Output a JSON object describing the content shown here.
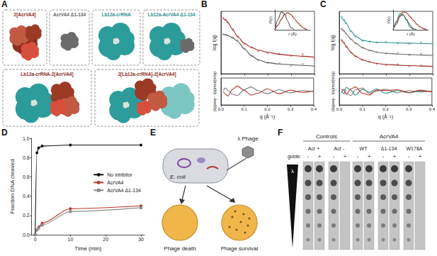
{
  "panel_a": {
    "panel": "A",
    "structures": [
      "2[AcrVA4]",
      "AcrVA4 Δ1-134",
      "Lb12a-crRNA",
      "Lb12a-AcrVA4 Δ1-134",
      "Lb12a-crRNA-2[AcrVA4]",
      "2[Lb12a-crRNA]-2[AcrVA4]"
    ]
  },
  "chart_data": [
    {
      "panel": "B",
      "type": "line",
      "ylabel": "log I(q)",
      "xlim": [
        0,
        0.4
      ],
      "xticks": [
        0,
        0.1,
        0.2,
        0.3,
        0.4
      ],
      "ylim": [
        -4,
        0.5
      ],
      "tick_labels": false,
      "x": [
        0.01,
        0.02,
        0.03,
        0.05,
        0.07,
        0.1,
        0.13,
        0.16,
        0.2,
        0.25,
        0.3,
        0.35,
        0.4
      ],
      "series": [
        {
          "type": "scatter",
          "marker": "circle",
          "color": "#d58a7f",
          "values": [
            0.02,
            -0.1,
            -0.3,
            -0.8,
            -1.3,
            -1.85,
            -2.1,
            -2.35,
            -2.5,
            -2.55,
            -2.7,
            -2.6,
            -2.9
          ]
        },
        {
          "type": "line",
          "line_style": "solid",
          "color": "#9b2a1c",
          "values": [
            0,
            -0.12,
            -0.32,
            -0.8,
            -1.3,
            -1.8,
            -2.1,
            -2.3,
            -2.45,
            -2.6,
            -2.68,
            -2.74,
            -2.8
          ]
        },
        {
          "type": "scatter",
          "marker": "circle",
          "color": "#ababab",
          "values": [
            -1.15,
            -1.2,
            -1.25,
            -1.4,
            -1.6,
            -2.2,
            -2.7,
            -3.0,
            -3.2,
            -3.25,
            -3.4,
            -3.3,
            -3.5
          ]
        },
        {
          "type": "line",
          "line_style": "solid",
          "color": "#555555",
          "values": [
            -1.15,
            -1.18,
            -1.25,
            -1.4,
            -1.65,
            -2.2,
            -2.7,
            -3.0,
            -3.2,
            -3.3,
            -3.35,
            -3.4,
            -3.45
          ]
        }
      ]
    },
    {
      "type": "line",
      "xlabel": "q (Å⁻¹)",
      "ylabel": "(I(q)exp - I(q)mod)/σ(q)",
      "xlim": [
        0,
        0.4
      ],
      "xticks": [
        {
          "value": 0,
          "label": "0.0"
        },
        0.1,
        0.2,
        0.3,
        0.4
      ],
      "ylim": [
        -3,
        3
      ],
      "tick_labels": "x",
      "x": [
        0.01,
        0.02,
        0.03,
        0.05,
        0.07,
        0.1,
        0.13,
        0.16,
        0.2,
        0.25,
        0.3,
        0.35,
        0.4
      ],
      "series": [
        {
          "line_style": "solid",
          "color": "#c0392b",
          "values": [
            0,
            -0.6,
            -1,
            0.5,
            1.2,
            0.3,
            -0.8,
            -0.4,
            0.6,
            -0.5,
            0.3,
            -0.2,
            0.1
          ]
        },
        {
          "line_style": "solid",
          "color": "#777777",
          "values": [
            0.3,
            0.8,
            0.2,
            -0.6,
            -0.9,
            0.4,
            1.0,
            0.2,
            -0.5,
            0.4,
            -0.3,
            0.2,
            0
          ]
        }
      ]
    },
    {
      "type": "line",
      "xlabel": "r (Å)",
      "ylabel": "P(r)",
      "xlim": [
        0,
        110
      ],
      "ylim": [
        0,
        1.05
      ],
      "tick_labels": false,
      "series": [
        {
          "line_style": "solid",
          "color": "#9b2a1c",
          "x": [
            0,
            10,
            20,
            30,
            40,
            50,
            60,
            70,
            80,
            90,
            100
          ],
          "values": [
            0,
            0.25,
            0.55,
            0.8,
            0.9,
            0.8,
            0.6,
            0.4,
            0.22,
            0.08,
            0
          ]
        },
        {
          "line_style": "solid",
          "color": "#555555",
          "x": [
            0,
            10,
            20,
            30,
            40,
            50,
            60
          ],
          "values": [
            0,
            0.55,
            0.95,
            0.85,
            0.45,
            0.12,
            0
          ]
        }
      ]
    },
    {
      "panel": "C",
      "type": "line",
      "ylabel": "log I(q)",
      "xlim": [
        0,
        0.4
      ],
      "xticks": [
        0,
        0.1,
        0.2,
        0.3,
        0.4
      ],
      "ylim": [
        -4.5,
        0.5
      ],
      "tick_labels": false,
      "x": [
        0.01,
        0.02,
        0.03,
        0.05,
        0.07,
        0.1,
        0.13,
        0.16,
        0.2,
        0.25,
        0.3,
        0.35,
        0.4
      ],
      "series": [
        {
          "type": "scatter",
          "marker": "circle",
          "color": "#7fc2bf",
          "values": [
            0.05,
            -0.2,
            -0.45,
            -1.1,
            -1.5,
            -1.85,
            -1.9,
            -2.0,
            -1.95,
            -2.05,
            -2.1,
            -2.0,
            -2.2
          ]
        },
        {
          "type": "line",
          "line_style": "solid",
          "color": "#2a8c8a",
          "values": [
            0,
            -0.2,
            -0.48,
            -1.08,
            -1.5,
            -1.82,
            -1.93,
            -1.98,
            -2.0,
            -2.03,
            -2.05,
            -2.07,
            -2.1
          ]
        },
        {
          "type": "scatter",
          "marker": "circle",
          "color": "#b5b0a8",
          "values": [
            -0.9,
            -1.05,
            -1.3,
            -1.75,
            -2.05,
            -2.4,
            -2.65,
            -2.75,
            -2.9,
            -2.85,
            -3.0,
            -2.9,
            -3.1
          ]
        },
        {
          "type": "line",
          "line_style": "solid",
          "color": "#6e6a64",
          "values": [
            -0.9,
            -1.08,
            -1.3,
            -1.72,
            -2.05,
            -2.42,
            -2.62,
            -2.78,
            -2.86,
            -2.92,
            -2.96,
            -3.0,
            -3.02
          ]
        },
        {
          "type": "scatter",
          "marker": "circle",
          "color": "#d58a7f",
          "values": [
            -1.8,
            -2.0,
            -2.35,
            -2.8,
            -3.1,
            -3.4,
            -3.55,
            -3.7,
            -3.8,
            -3.75,
            -3.9,
            -3.85,
            -4.0
          ]
        },
        {
          "type": "line",
          "line_style": "solid",
          "color": "#9b2a1c",
          "values": [
            -1.8,
            -2.02,
            -2.32,
            -2.78,
            -3.1,
            -3.38,
            -3.56,
            -3.68,
            -3.76,
            -3.81,
            -3.85,
            -3.88,
            -3.9
          ]
        }
      ]
    },
    {
      "type": "line",
      "xlabel": "q (Å⁻¹)",
      "ylabel": "(I(q)exp - I(q)mod)/σ(q)",
      "xlim": [
        0,
        0.4
      ],
      "xticks": [
        {
          "value": 0,
          "label": "0.0"
        },
        0.1,
        0.2,
        0.3,
        0.4
      ],
      "ylim": [
        -3,
        3
      ],
      "tick_labels": "x",
      "x": [
        0.01,
        0.02,
        0.03,
        0.05,
        0.07,
        0.1,
        0.13,
        0.16,
        0.2,
        0.25,
        0.3,
        0.35,
        0.4
      ],
      "series": [
        {
          "line_style": "solid",
          "color": "#2a8c8a",
          "values": [
            0.2,
            -0.5,
            0.9,
            0.3,
            -0.8,
            0.5,
            -0.2,
            0.6,
            -0.4,
            0.2,
            -0.3,
            0.1,
            0
          ]
        },
        {
          "line_style": "solid",
          "color": "#8a857e",
          "values": [
            -0.3,
            0.6,
            -0.4,
            -0.9,
            0.4,
            0.8,
            -0.5,
            0.1,
            0.5,
            -0.3,
            0.2,
            -0.1,
            0.1
          ]
        },
        {
          "line_style": "solid",
          "color": "#c0392b",
          "values": [
            0.5,
            0.2,
            -0.7,
            0.6,
            1.0,
            -0.4,
            -0.8,
            0.3,
            0.2,
            0.4,
            -0.2,
            0.3,
            -0.1
          ]
        }
      ]
    },
    {
      "type": "line",
      "xlabel": "r (Å)",
      "ylabel": "P(r)",
      "xlim": [
        0,
        210
      ],
      "ylim": [
        0,
        1.05
      ],
      "tick_labels": false,
      "series": [
        {
          "line_style": "solid",
          "color": "#9b2a1c",
          "x": [
            0,
            20,
            40,
            60,
            80,
            100,
            120,
            140,
            160,
            180,
            200
          ],
          "values": [
            0,
            0.3,
            0.7,
            0.95,
            0.9,
            0.7,
            0.5,
            0.3,
            0.15,
            0.05,
            0
          ]
        },
        {
          "line_style": "solid",
          "color": "#2a8c8a",
          "x": [
            0,
            20,
            40,
            60,
            80,
            100,
            120
          ],
          "values": [
            0,
            0.45,
            0.85,
            0.8,
            0.5,
            0.15,
            0
          ]
        },
        {
          "line_style": "solid",
          "color": "#6e6a64",
          "x": [
            0,
            20,
            40,
            60,
            80,
            100,
            120,
            140
          ],
          "values": [
            0,
            0.4,
            0.75,
            0.78,
            0.55,
            0.25,
            0.06,
            0
          ]
        }
      ]
    },
    {
      "panel": "D",
      "type": "line",
      "xlabel": "Time (min)",
      "ylabel": "Fraction DNA cleaved",
      "xlim": [
        -1,
        31
      ],
      "xticks": [
        0,
        10,
        20,
        30
      ],
      "ylim": [
        0,
        1
      ],
      "yticks": [
        {
          "value": 0,
          "label": "0.0"
        },
        0.2,
        0.4,
        0.6,
        0.8,
        {
          "value": 1,
          "label": "1.0"
        }
      ],
      "legend": "right",
      "x": [
        0,
        0.5,
        1,
        2,
        10,
        30
      ],
      "series": [
        {
          "name": "No inhibitor",
          "color": "#111111",
          "marker": "circle",
          "line_style": "solid",
          "values": [
            0,
            0.85,
            0.9,
            0.92,
            0.93,
            0.93
          ]
        },
        {
          "name": "AcrVA4",
          "color": "#b8352a",
          "marker": "circle",
          "line_style": "solid",
          "values": [
            0,
            0.05,
            0.08,
            0.12,
            0.27,
            0.3
          ]
        },
        {
          "name": "AcrVA4 Δ1-134",
          "color": "#8c8c8c",
          "marker": "square",
          "line_style": "solid",
          "values": [
            0,
            0.05,
            0.07,
            0.1,
            0.24,
            0.28
          ]
        }
      ]
    }
  ],
  "panel_e": {
    "panel": "E",
    "host": "E. coli",
    "phage": "λ Phage",
    "outcomes": [
      "Phage death",
      "Phage survival"
    ]
  },
  "panel_f": {
    "panel": "F",
    "guide_label": "guide:",
    "phage": "λ",
    "groups": [
      {
        "title": "Controls",
        "columns": [
          {
            "label": "Acr +",
            "lanes": [
              {
                "guide": "-",
                "plaques": 6
              },
              {
                "guide": "+",
                "plaques": 6
              }
            ]
          },
          {
            "label": "Acr -",
            "lanes": [
              {
                "guide": "-",
                "plaques": 6
              },
              {
                "guide": "+",
                "plaques": 0
              }
            ]
          }
        ]
      },
      {
        "title": "AcrVA4",
        "columns": [
          {
            "label": "WT",
            "lanes": [
              {
                "guide": "-",
                "plaques": 6
              },
              {
                "guide": "+",
                "plaques": 6
              }
            ]
          },
          {
            "label": "Δ1-134",
            "lanes": [
              {
                "guide": "-",
                "plaques": 6
              },
              {
                "guide": "+",
                "plaques": 6
              }
            ]
          },
          {
            "label": "W178A",
            "lanes": [
              {
                "guide": "-",
                "plaques": 6
              },
              {
                "guide": "+",
                "plaques": 0
              }
            ]
          }
        ]
      }
    ]
  }
}
